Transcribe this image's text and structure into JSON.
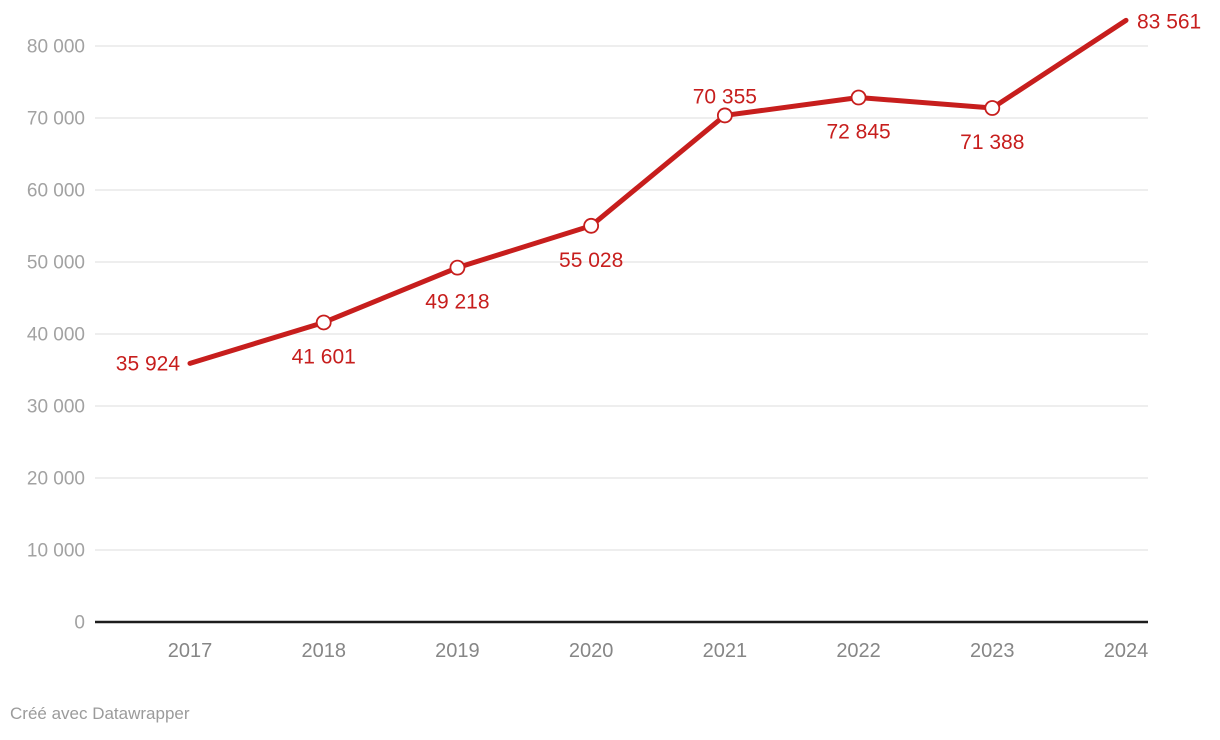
{
  "chart": {
    "title": "",
    "footer": "Créé avec Datawrapper",
    "colors": {
      "line": "#c71e1d",
      "value_label": "#c71e1d",
      "marker_fill": "#ffffff",
      "grid": "#e9e9e9",
      "baseline": "#1d1d1d",
      "y_axis_text": "#a2a2a2",
      "x_axis_text": "#868686",
      "footer_text": "#9b9b9b",
      "background": "#ffffff"
    }
  },
  "chart_data": {
    "type": "line",
    "categories": [
      "2017",
      "2018",
      "2019",
      "2020",
      "2021",
      "2022",
      "2023",
      "2024"
    ],
    "values": [
      35924,
      41601,
      49218,
      55028,
      70355,
      72845,
      71388,
      83561
    ],
    "value_labels": [
      "35 924",
      "41 601",
      "49 218",
      "55 028",
      "70 355",
      "72 845",
      "71 388",
      "83 561"
    ],
    "label_placement": [
      "left",
      "below",
      "below",
      "below",
      "above",
      "below",
      "below",
      "right"
    ],
    "point_markers": [
      false,
      true,
      true,
      true,
      true,
      true,
      true,
      false
    ],
    "y_ticks": [
      0,
      10000,
      20000,
      30000,
      40000,
      50000,
      60000,
      70000,
      80000
    ],
    "y_tick_labels": [
      "0",
      "10 000",
      "20 000",
      "30 000",
      "40 000",
      "50 000",
      "60 000",
      "70 000",
      "80 000"
    ],
    "title": "",
    "xlabel": "",
    "ylabel": "",
    "ylim": [
      0,
      86000
    ],
    "grid": true,
    "legend": "none"
  }
}
